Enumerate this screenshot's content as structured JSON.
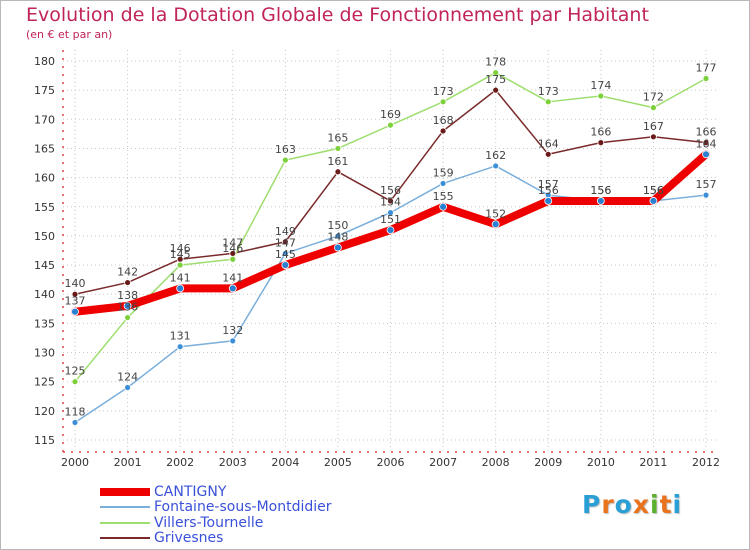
{
  "header": {
    "title": "Evolution de la Dotation Globale de Fonctionnement par Habitant",
    "subtitle": "(en € et par an)"
  },
  "logo": {
    "text": "Proxiti",
    "letters": [
      "P",
      "r",
      "o",
      "x",
      "i",
      "t",
      "i"
    ],
    "colors": [
      "#2a9fd6",
      "#e8731c",
      "#2a9fd6",
      "#e8731c",
      "#5bb030",
      "#e8731c",
      "#2a9fd6"
    ]
  },
  "chart_data": {
    "type": "line",
    "title": "Evolution de la Dotation Globale de Fonctionnement par Habitant",
    "subtitle": "(en € et par an)",
    "x": [
      2000,
      2001,
      2002,
      2003,
      2004,
      2005,
      2006,
      2007,
      2008,
      2009,
      2010,
      2011,
      2012
    ],
    "x_tick_labels": [
      "2000",
      "2001",
      "2002",
      "2003",
      "2004",
      "2005",
      "2006",
      "2007",
      "2008",
      "2009",
      "2010",
      "2011",
      "2012"
    ],
    "ylim": [
      115,
      180
    ],
    "y_ticks": [
      115,
      120,
      125,
      130,
      135,
      140,
      145,
      150,
      155,
      160,
      165,
      170,
      175,
      180
    ],
    "y_tick_labels": [
      "115",
      "120",
      "125",
      "130",
      "135",
      "140",
      "145",
      "150",
      "155",
      "160",
      "165",
      "170",
      "175",
      "180"
    ],
    "grid": "horizontal dotted",
    "legend_position": "bottom-left",
    "series": [
      {
        "name": "CANTIGNY",
        "color": "#ee0000",
        "marker": "#2a7fd0",
        "width": "thick",
        "values": [
          137,
          138,
          141,
          141,
          145,
          148,
          151,
          155,
          152,
          156,
          156,
          156,
          164
        ]
      },
      {
        "name": "Fontaine-sous-Montdidier",
        "color": "#7aaedb",
        "marker": "#3a8fd8",
        "width": "thin",
        "values": [
          118,
          124,
          131,
          132,
          147,
          150,
          154,
          159,
          162,
          157,
          156,
          156,
          157
        ]
      },
      {
        "name": "Villers-Tournelle",
        "color": "#9ede6e",
        "marker": "#7cd13a",
        "width": "thin",
        "values": [
          125,
          136,
          145,
          146,
          163,
          165,
          169,
          173,
          178,
          173,
          174,
          172,
          177
        ]
      },
      {
        "name": "Grivesnes",
        "color": "#7a2a2a",
        "marker": "#6b1a1a",
        "width": "thin",
        "values": [
          140,
          142,
          146,
          147,
          149,
          161,
          156,
          168,
          175,
          164,
          166,
          167,
          166
        ]
      }
    ],
    "point_labels": [
      [
        "137",
        "138",
        "141",
        "141",
        "145",
        "148",
        "151",
        "155",
        "152",
        "156",
        "156",
        "156",
        "164"
      ],
      [
        "118",
        "124",
        "131",
        "132",
        "147",
        "150",
        "154",
        "159",
        "162",
        "157",
        "156",
        "156",
        "157"
      ],
      [
        "125",
        "136",
        "145",
        "146",
        "163",
        "165",
        "169",
        "173",
        "178",
        "173",
        "174",
        "172",
        "177"
      ],
      [
        "140",
        "142",
        "146",
        "147",
        "149",
        "161",
        "156",
        "168",
        "175",
        "164",
        "166",
        "167",
        "166"
      ]
    ]
  }
}
